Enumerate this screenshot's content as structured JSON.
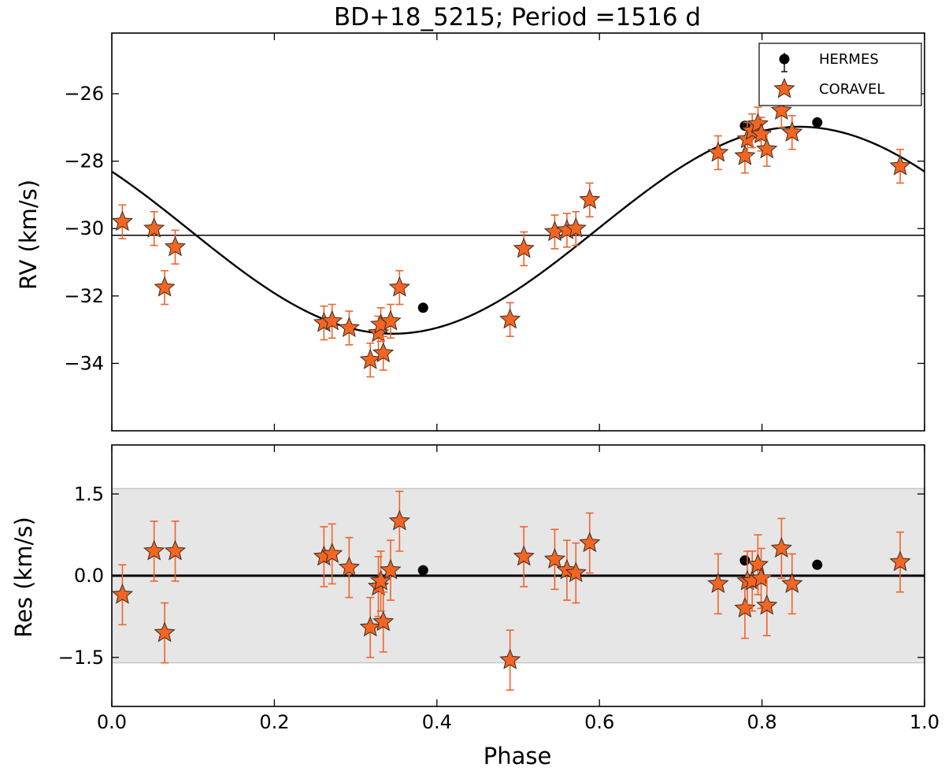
{
  "chart_data": {
    "type": "scatter",
    "title": "BD+18_5215; Period =1516 d",
    "xlabel": "Phase",
    "xlim": [
      0.0,
      1.0
    ],
    "xticks": [
      0.0,
      0.2,
      0.4,
      0.6,
      0.8,
      1.0
    ],
    "xtick_labels": [
      "0.0",
      "0.2",
      "0.4",
      "0.6",
      "0.8",
      "1.0"
    ],
    "legend": {
      "position": "top-right",
      "entries": [
        {
          "label": "HERMES",
          "marker": "circle",
          "color": "#000000"
        },
        {
          "label": "CORAVEL",
          "marker": "star",
          "color": "#f26522"
        }
      ]
    },
    "rv_panel": {
      "ylabel": "RV (km/s)",
      "ylim": [
        -36,
        -24.2
      ],
      "yticks": [
        -34,
        -32,
        -30,
        -28,
        -26
      ],
      "ytick_labels": [
        "−34",
        "−32",
        "−30",
        "−28",
        "−26"
      ],
      "systemic_velocity": -30.2,
      "orbit_model": {
        "gamma": -30.05,
        "amplitude": 3.07,
        "phase_of_max": 0.846
      },
      "series": [
        {
          "name": "HERMES",
          "x": [
            0.383,
            0.779,
            0.868
          ],
          "y": [
            -32.35,
            -26.95,
            -26.85
          ]
        },
        {
          "name": "CORAVEL",
          "error": 0.5,
          "x": [
            0.013,
            0.052,
            0.065,
            0.078,
            0.261,
            0.271,
            0.292,
            0.318,
            0.328,
            0.331,
            0.334,
            0.343,
            0.354,
            0.49,
            0.507,
            0.545,
            0.56,
            0.571,
            0.588,
            0.746,
            0.779,
            0.782,
            0.788,
            0.795,
            0.799,
            0.806,
            0.824,
            0.837,
            0.97
          ],
          "y": [
            -29.8,
            -30.0,
            -31.75,
            -30.55,
            -32.8,
            -32.75,
            -32.95,
            -33.9,
            -33.1,
            -32.85,
            -33.7,
            -32.75,
            -31.75,
            -32.7,
            -30.6,
            -30.1,
            -30.05,
            -30.0,
            -29.15,
            -27.75,
            -27.85,
            -27.35,
            -27.1,
            -26.9,
            -27.2,
            -27.65,
            -26.5,
            -27.15,
            -28.15
          ]
        }
      ]
    },
    "residual_panel": {
      "ylabel": "Res (km/s)",
      "ylim": [
        -2.4,
        2.4
      ],
      "yticks": [
        -1.5,
        0.0,
        1.5
      ],
      "ytick_labels": [
        "−1.5",
        "0.0",
        "1.5"
      ],
      "band": [
        -1.6,
        1.6
      ],
      "series": [
        {
          "name": "HERMES",
          "x": [
            0.383,
            0.779,
            0.868
          ],
          "y": [
            0.1,
            0.28,
            0.2
          ]
        },
        {
          "name": "CORAVEL",
          "error": 0.55,
          "x": [
            0.013,
            0.052,
            0.065,
            0.078,
            0.261,
            0.271,
            0.292,
            0.318,
            0.328,
            0.331,
            0.334,
            0.343,
            0.354,
            0.49,
            0.507,
            0.545,
            0.56,
            0.571,
            0.588,
            0.746,
            0.779,
            0.782,
            0.788,
            0.795,
            0.799,
            0.806,
            0.824,
            0.837,
            0.97
          ],
          "y": [
            -0.35,
            0.45,
            -1.05,
            0.45,
            0.35,
            0.4,
            0.15,
            -0.95,
            -0.2,
            -0.1,
            -0.85,
            0.1,
            1.0,
            -1.55,
            0.35,
            0.3,
            0.1,
            0.05,
            0.6,
            -0.15,
            -0.6,
            -0.1,
            -0.1,
            0.2,
            -0.05,
            -0.55,
            0.5,
            -0.15,
            0.25
          ]
        }
      ]
    }
  }
}
